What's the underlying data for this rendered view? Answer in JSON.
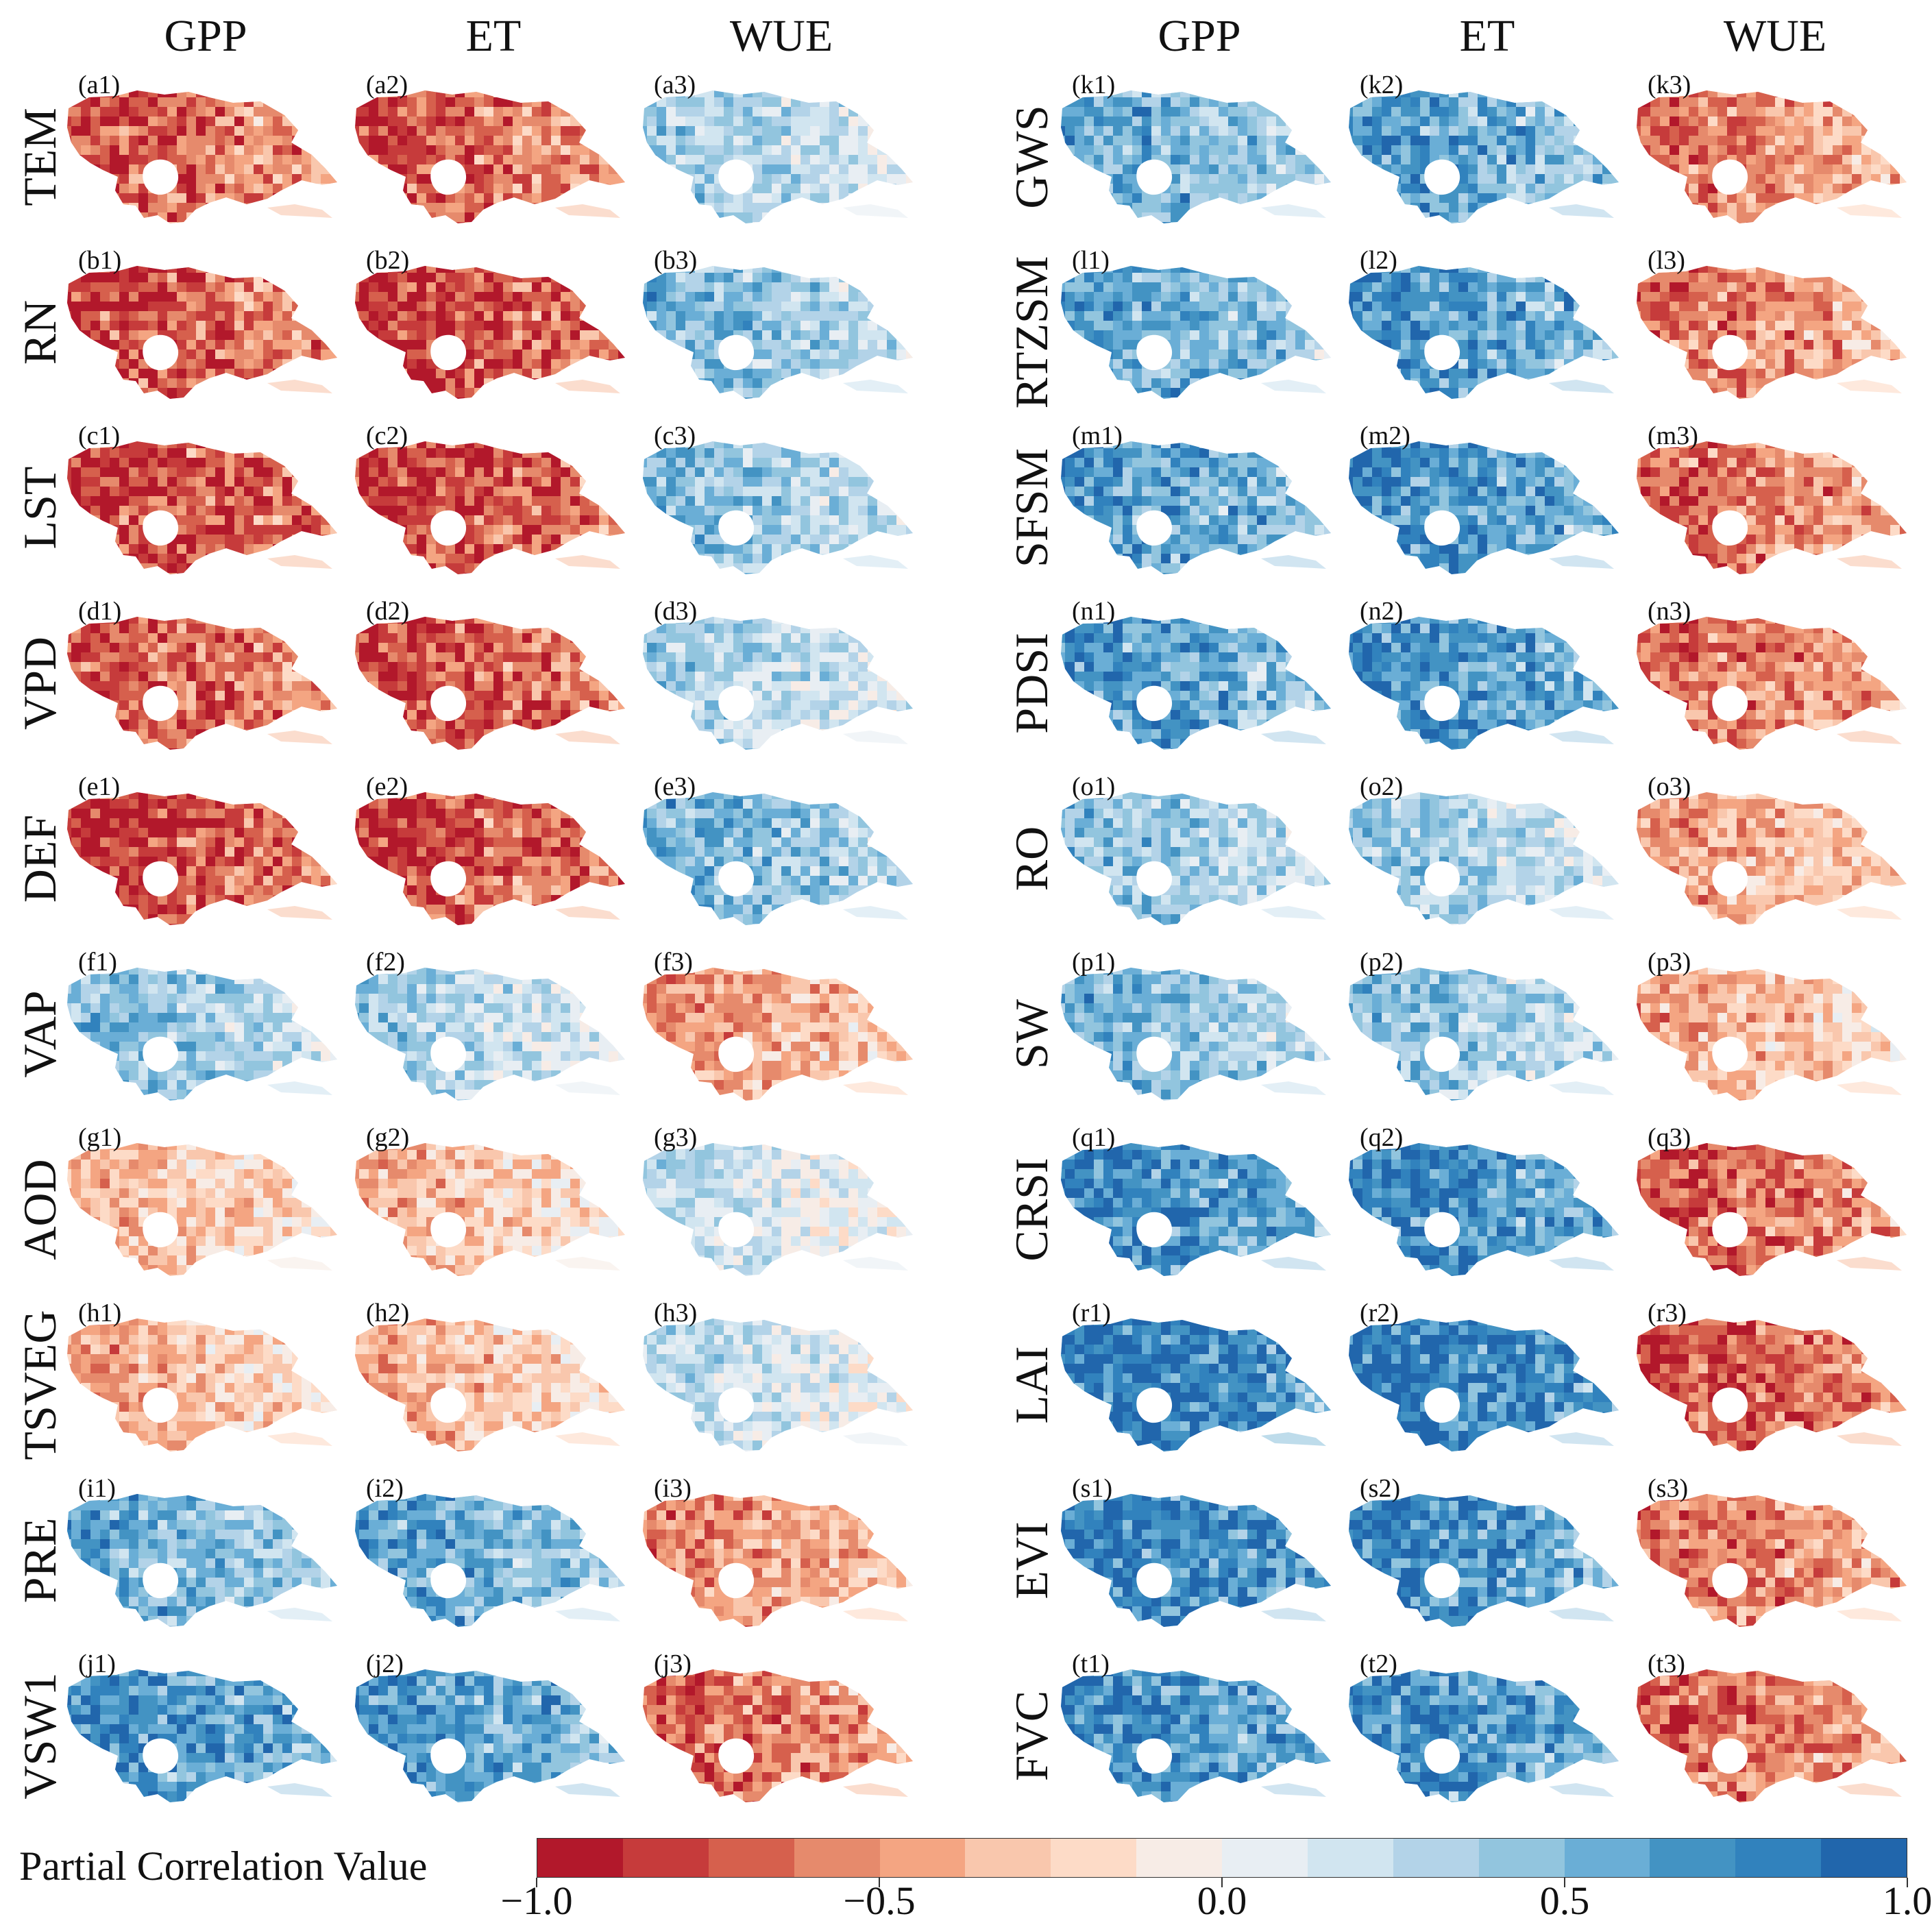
{
  "column_headers": {
    "left": [
      "GPP",
      "ET",
      "WUE"
    ],
    "right": [
      "GPP",
      "ET",
      "WUE"
    ]
  },
  "rows_left": [
    {
      "label": "TEM",
      "letter": "a",
      "tags": [
        "(a1)",
        "(a2)",
        "(a3)"
      ],
      "mean_corr": [
        -0.7,
        -0.75,
        0.3
      ]
    },
    {
      "label": "RN",
      "letter": "b",
      "tags": [
        "(b1)",
        "(b2)",
        "(b3)"
      ],
      "mean_corr": [
        -0.8,
        -0.85,
        0.45
      ]
    },
    {
      "label": "LST",
      "letter": "c",
      "tags": [
        "(c1)",
        "(c2)",
        "(c3)"
      ],
      "mean_corr": [
        -0.85,
        -0.85,
        0.4
      ]
    },
    {
      "label": "VPD",
      "letter": "d",
      "tags": [
        "(d1)",
        "(d2)",
        "(d3)"
      ],
      "mean_corr": [
        -0.75,
        -0.8,
        0.3
      ]
    },
    {
      "label": "DEF",
      "letter": "e",
      "tags": [
        "(e1)",
        "(e2)",
        "(e3)"
      ],
      "mean_corr": [
        -0.85,
        -0.85,
        0.5
      ]
    },
    {
      "label": "VAP",
      "letter": "f",
      "tags": [
        "(f1)",
        "(f2)",
        "(f3)"
      ],
      "mean_corr": [
        0.4,
        0.3,
        -0.45
      ]
    },
    {
      "label": "AOD",
      "letter": "g",
      "tags": [
        "(g1)",
        "(g2)",
        "(g3)"
      ],
      "mean_corr": [
        -0.3,
        -0.3,
        0.15
      ]
    },
    {
      "label": "TSVEG",
      "letter": "h",
      "tags": [
        "(h1)",
        "(h2)",
        "(h3)"
      ],
      "mean_corr": [
        -0.35,
        -0.35,
        0.2
      ]
    },
    {
      "label": "PRE",
      "letter": "i",
      "tags": [
        "(i1)",
        "(i2)",
        "(i3)"
      ],
      "mean_corr": [
        0.55,
        0.6,
        -0.5
      ]
    },
    {
      "label": "VSW1",
      "letter": "j",
      "tags": [
        "(j1)",
        "(j2)",
        "(j3)"
      ],
      "mean_corr": [
        0.7,
        0.7,
        -0.65
      ]
    }
  ],
  "rows_right": [
    {
      "label": "GWS",
      "letter": "k",
      "tags": [
        "(k1)",
        "(k2)",
        "(k3)"
      ],
      "mean_corr": [
        0.55,
        0.65,
        -0.6
      ]
    },
    {
      "label": "RTZSM",
      "letter": "l",
      "tags": [
        "(l1)",
        "(l2)",
        "(l3)"
      ],
      "mean_corr": [
        0.6,
        0.7,
        -0.6
      ]
    },
    {
      "label": "SFSM",
      "letter": "m",
      "tags": [
        "(m1)",
        "(m2)",
        "(m3)"
      ],
      "mean_corr": [
        0.65,
        0.75,
        -0.65
      ]
    },
    {
      "label": "PDSI",
      "letter": "n",
      "tags": [
        "(n1)",
        "(n2)",
        "(n3)"
      ],
      "mean_corr": [
        0.65,
        0.75,
        -0.65
      ]
    },
    {
      "label": "RO",
      "letter": "o",
      "tags": [
        "(o1)",
        "(o2)",
        "(o3)"
      ],
      "mean_corr": [
        0.4,
        0.35,
        -0.4
      ]
    },
    {
      "label": "SW",
      "letter": "p",
      "tags": [
        "(p1)",
        "(p2)",
        "(p3)"
      ],
      "mean_corr": [
        0.45,
        0.4,
        -0.35
      ]
    },
    {
      "label": "CRSI",
      "letter": "q",
      "tags": [
        "(q1)",
        "(q2)",
        "(q3)"
      ],
      "mean_corr": [
        0.8,
        0.8,
        -0.7
      ]
    },
    {
      "label": "LAI",
      "letter": "r",
      "tags": [
        "(r1)",
        "(r2)",
        "(r3)"
      ],
      "mean_corr": [
        0.95,
        0.9,
        -0.75
      ]
    },
    {
      "label": "EVI",
      "letter": "s",
      "tags": [
        "(s1)",
        "(s2)",
        "(s3)"
      ],
      "mean_corr": [
        0.85,
        0.8,
        -0.6
      ]
    },
    {
      "label": "FVC",
      "letter": "t",
      "tags": [
        "(t1)",
        "(t2)",
        "(t3)"
      ],
      "mean_corr": [
        0.8,
        0.75,
        -0.65
      ]
    }
  ],
  "colorbar": {
    "title": "Partial Correlation Value",
    "range": [
      -1.0,
      1.0
    ],
    "ticks": [
      -1.0,
      -0.5,
      0.0,
      0.5,
      1.0
    ],
    "tick_labels": [
      "−1.0",
      "−0.5",
      "0.0",
      "0.5",
      "1.0"
    ],
    "colors": [
      "#b2182b",
      "#c63b3b",
      "#d6604d",
      "#e68a6c",
      "#f4a582",
      "#f9c7ad",
      "#fddbc7",
      "#f7ece6",
      "#e8eef3",
      "#d1e5f0",
      "#b3d3e8",
      "#92c5de",
      "#6aaed6",
      "#4393c3",
      "#3182bd",
      "#2166ac"
    ]
  }
}
